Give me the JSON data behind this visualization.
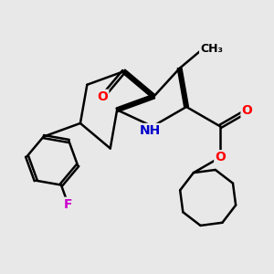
{
  "bg_color": "#e8e8e8",
  "bond_color": "#000000",
  "bond_width": 1.8,
  "atom_colors": {
    "O": "#ff0000",
    "N": "#0000cc",
    "F": "#cc00cc",
    "C": "#000000"
  },
  "font_size": 10
}
